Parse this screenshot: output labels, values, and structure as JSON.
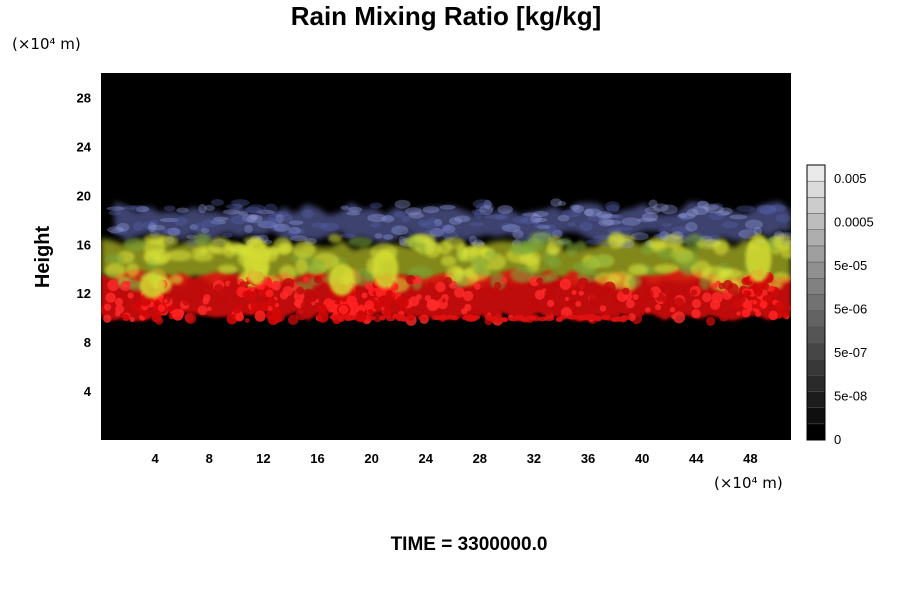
{
  "chart_data": {
    "type": "heatmap",
    "title": "Rain Mixing Ratio [kg/kg]",
    "ylabel": "Height",
    "xlabel": "",
    "x_unit": "(×10⁴ m)",
    "y_unit": "(×10⁴ m)",
    "xlim": [
      0,
      51
    ],
    "ylim": [
      0,
      30
    ],
    "x_ticks": [
      4,
      8,
      12,
      16,
      20,
      24,
      28,
      32,
      36,
      40,
      44,
      48
    ],
    "y_ticks": [
      4,
      8,
      12,
      16,
      20,
      24,
      28
    ],
    "grid": false,
    "colorbar": {
      "scale": "log",
      "tick_labels": [
        "0.005",
        "0.0005",
        "5e-05",
        "5e-06",
        "5e-07",
        "5e-08",
        "0"
      ],
      "colors_bottom_to_top": [
        "#000000",
        "#0f0f0f",
        "#1c1c1c",
        "#2a2a2a",
        "#383838",
        "#464646",
        "#555555",
        "#636363",
        "#727272",
        "#818181",
        "#909090",
        "#9f9f9f",
        "#aeaeae",
        "#bdbdbd",
        "#cccccc",
        "#dbdbdb",
        "#eaeaea"
      ]
    },
    "layers": [
      {
        "name": "high-value cloud top",
        "color": "#6f78c8",
        "y_range": [
          16,
          19.5
        ],
        "x_range": [
          1,
          51
        ]
      },
      {
        "name": "mid-value layer",
        "color": "#c9d22a",
        "y_range": [
          12.5,
          16.5
        ],
        "x_range": [
          0,
          51
        ]
      },
      {
        "name": "low-value layer",
        "color": "#e01010",
        "y_range": [
          9.7,
          14
        ],
        "x_range": [
          0,
          51
        ]
      }
    ],
    "features": [
      {
        "type": "convective-tower",
        "x": 11.5,
        "top": 16.2,
        "base": 9.8
      },
      {
        "type": "convective-tower",
        "x": 17.8,
        "top": 14.2,
        "base": 9.8
      },
      {
        "type": "convective-tower",
        "x": 21,
        "top": 15.3,
        "base": 10
      },
      {
        "type": "convective-tower",
        "x": 3.8,
        "top": 13.5,
        "base": 10
      },
      {
        "type": "convective-tower",
        "x": 48.6,
        "top": 16.5,
        "base": 10
      }
    ]
  },
  "footer": {
    "time_label": "TIME = 3300000.0"
  },
  "colors": {
    "background": "#000000",
    "page": "#ffffff"
  }
}
